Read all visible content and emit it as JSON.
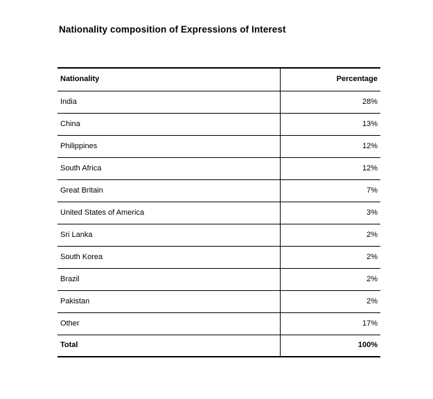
{
  "document": {
    "title": "Nationality composition of Expressions of Interest"
  },
  "table": {
    "columns": [
      "Nationality",
      "Percentage"
    ],
    "rows": [
      {
        "nationality": "India",
        "percentage": "28%"
      },
      {
        "nationality": "China",
        "percentage": "13%"
      },
      {
        "nationality": "Philippines",
        "percentage": "12%"
      },
      {
        "nationality": "South Africa",
        "percentage": "12%"
      },
      {
        "nationality": "Great Britain",
        "percentage": "7%"
      },
      {
        "nationality": "United States of America",
        "percentage": "3%"
      },
      {
        "nationality": "Sri Lanka",
        "percentage": "2%"
      },
      {
        "nationality": "South Korea",
        "percentage": "2%"
      },
      {
        "nationality": "Brazil",
        "percentage": "2%"
      },
      {
        "nationality": "Pakistan",
        "percentage": "2%"
      },
      {
        "nationality": "Other",
        "percentage": "17%"
      }
    ],
    "total": {
      "label": "Total",
      "value": "100%"
    }
  },
  "colors": {
    "text": "#000000",
    "border": "#000000",
    "background": "#ffffff"
  }
}
